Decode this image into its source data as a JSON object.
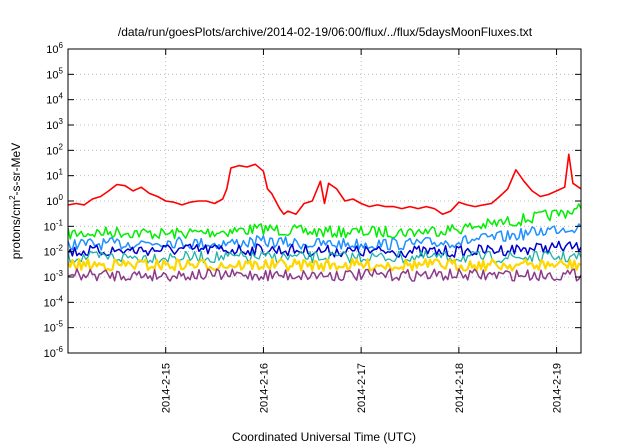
{
  "chart_data": {
    "type": "line",
    "title": "/data/run/goesPlots/archive/2014-02-19/06:00/flux/../flux/5daysMoonFluxes.txt",
    "xlabel": "Coordinated Universal Time (UTC)",
    "ylabel": {
      "prefix": "protons/cm",
      "sup": "2",
      "suffix": "-s-sr-MeV"
    },
    "yscale": "log",
    "ylim": [
      1e-06,
      1000000.0
    ],
    "y_ticks": [
      {
        "base": "10",
        "exp": "-6",
        "value": 1e-06
      },
      {
        "base": "10",
        "exp": "-5",
        "value": 1e-05
      },
      {
        "base": "10",
        "exp": "-4",
        "value": 0.0001
      },
      {
        "base": "10",
        "exp": "-3",
        "value": 0.001
      },
      {
        "base": "10",
        "exp": "-2",
        "value": 0.01
      },
      {
        "base": "10",
        "exp": "-1",
        "value": 0.1
      },
      {
        "base": "10",
        "exp": "0",
        "value": 1
      },
      {
        "base": "10",
        "exp": "1",
        "value": 10
      },
      {
        "base": "10",
        "exp": "2",
        "value": 100
      },
      {
        "base": "10",
        "exp": "3",
        "value": 1000
      },
      {
        "base": "10",
        "exp": "4",
        "value": 10000
      },
      {
        "base": "10",
        "exp": "5",
        "value": 100000
      },
      {
        "base": "10",
        "exp": "6",
        "value": 1000000
      }
    ],
    "xlim": [
      "2014-02-14T00:00",
      "2014-02-19T06:00"
    ],
    "x_ticks": [
      {
        "label": "2014-2-15",
        "value": "2014-02-15T00:00"
      },
      {
        "label": "2014-2-16",
        "value": "2014-02-16T00:00"
      },
      {
        "label": "2014-2-17",
        "value": "2014-02-17T00:00"
      },
      {
        "label": "2014-2-18",
        "value": "2014-02-18T00:00"
      },
      {
        "label": "2014-2-19",
        "value": "2014-02-19T00:00"
      }
    ],
    "grid": true,
    "series": [
      {
        "color": "#ff0000",
        "width": 1.6,
        "points": [
          [
            "2014-02-14T00:00",
            0.7
          ],
          [
            "2014-02-14T02:00",
            0.8
          ],
          [
            "2014-02-14T04:00",
            0.7
          ],
          [
            "2014-02-14T06:00",
            1.2
          ],
          [
            "2014-02-14T08:00",
            1.5
          ],
          [
            "2014-02-14T10:00",
            2.5
          ],
          [
            "2014-02-14T12:00",
            4.5
          ],
          [
            "2014-02-14T14:00",
            4.0
          ],
          [
            "2014-02-14T16:00",
            2.5
          ],
          [
            "2014-02-14T18:00",
            3.5
          ],
          [
            "2014-02-14T20:00",
            2.0
          ],
          [
            "2014-02-14T22:00",
            1.5
          ],
          [
            "2014-02-15T00:00",
            1.0
          ],
          [
            "2014-02-15T02:00",
            0.9
          ],
          [
            "2014-02-15T04:00",
            0.7
          ],
          [
            "2014-02-15T06:00",
            0.9
          ],
          [
            "2014-02-15T08:00",
            1.0
          ],
          [
            "2014-02-15T10:00",
            1.0
          ],
          [
            "2014-02-15T12:00",
            0.8
          ],
          [
            "2014-02-15T14:00",
            1.2
          ],
          [
            "2014-02-15T15:00",
            3.0
          ],
          [
            "2014-02-15T16:00",
            20.0
          ],
          [
            "2014-02-15T18:00",
            25.0
          ],
          [
            "2014-02-15T20:00",
            22.0
          ],
          [
            "2014-02-15T22:00",
            28.0
          ],
          [
            "2014-02-16T00:00",
            15.0
          ],
          [
            "2014-02-16T01:00",
            3.0
          ],
          [
            "2014-02-16T02:00",
            2.0
          ],
          [
            "2014-02-16T04:00",
            0.5
          ],
          [
            "2014-02-16T05:00",
            0.3
          ],
          [
            "2014-02-16T06:00",
            0.4
          ],
          [
            "2014-02-16T08:00",
            0.3
          ],
          [
            "2014-02-16T10:00",
            0.8
          ],
          [
            "2014-02-16T12:00",
            1.0
          ],
          [
            "2014-02-16T14:00",
            6.0
          ],
          [
            "2014-02-16T15:00",
            0.8
          ],
          [
            "2014-02-16T16:00",
            5.0
          ],
          [
            "2014-02-16T18:00",
            3.0
          ],
          [
            "2014-02-16T20:00",
            1.0
          ],
          [
            "2014-02-16T22:00",
            1.2
          ],
          [
            "2014-02-17T00:00",
            0.8
          ],
          [
            "2014-02-17T02:00",
            0.6
          ],
          [
            "2014-02-17T04:00",
            0.7
          ],
          [
            "2014-02-17T06:00",
            0.6
          ],
          [
            "2014-02-17T08:00",
            0.6
          ],
          [
            "2014-02-17T10:00",
            0.5
          ],
          [
            "2014-02-17T12:00",
            0.6
          ],
          [
            "2014-02-17T14:00",
            0.5
          ],
          [
            "2014-02-17T16:00",
            0.6
          ],
          [
            "2014-02-17T18:00",
            0.5
          ],
          [
            "2014-02-17T20:00",
            0.3
          ],
          [
            "2014-02-17T22:00",
            0.4
          ],
          [
            "2014-02-18T00:00",
            0.9
          ],
          [
            "2014-02-18T02:00",
            0.7
          ],
          [
            "2014-02-18T04:00",
            0.6
          ],
          [
            "2014-02-18T06:00",
            0.7
          ],
          [
            "2014-02-18T08:00",
            0.8
          ],
          [
            "2014-02-18T10:00",
            1.5
          ],
          [
            "2014-02-18T12:00",
            3.0
          ],
          [
            "2014-02-18T14:00",
            17.0
          ],
          [
            "2014-02-18T16:00",
            6.0
          ],
          [
            "2014-02-18T18:00",
            2.5
          ],
          [
            "2014-02-18T20:00",
            1.5
          ],
          [
            "2014-02-18T22:00",
            1.8
          ],
          [
            "2014-02-19T00:00",
            2.5
          ],
          [
            "2014-02-19T02:00",
            3.5
          ],
          [
            "2014-02-19T03:00",
            70.0
          ],
          [
            "2014-02-19T04:00",
            5.0
          ],
          [
            "2014-02-19T06:00",
            3.0
          ]
        ]
      },
      {
        "color": "#00ee00",
        "width": 1.5,
        "noisy": true,
        "points": [
          [
            "2014-02-14T00:00",
            0.05
          ],
          [
            "2014-02-14T12:00",
            0.06
          ],
          [
            "2014-02-15T00:00",
            0.05
          ],
          [
            "2014-02-15T12:00",
            0.06
          ],
          [
            "2014-02-16T00:00",
            0.08
          ],
          [
            "2014-02-16T12:00",
            0.06
          ],
          [
            "2014-02-17T00:00",
            0.06
          ],
          [
            "2014-02-17T12:00",
            0.06
          ],
          [
            "2014-02-18T00:00",
            0.08
          ],
          [
            "2014-02-18T12:00",
            0.15
          ],
          [
            "2014-02-19T00:00",
            0.3
          ],
          [
            "2014-02-19T06:00",
            0.5
          ]
        ]
      },
      {
        "color": "#1e90ff",
        "width": 1.5,
        "noisy": true,
        "points": [
          [
            "2014-02-14T00:00",
            0.02
          ],
          [
            "2014-02-14T12:00",
            0.02
          ],
          [
            "2014-02-15T00:00",
            0.025
          ],
          [
            "2014-02-15T12:00",
            0.02
          ],
          [
            "2014-02-16T00:00",
            0.025
          ],
          [
            "2014-02-16T12:00",
            0.02
          ],
          [
            "2014-02-17T00:00",
            0.02
          ],
          [
            "2014-02-17T12:00",
            0.02
          ],
          [
            "2014-02-18T00:00",
            0.025
          ],
          [
            "2014-02-18T12:00",
            0.04
          ],
          [
            "2014-02-19T00:00",
            0.08
          ],
          [
            "2014-02-19T06:00",
            0.1
          ]
        ]
      },
      {
        "color": "#0000cc",
        "width": 1.5,
        "noisy": true,
        "points": [
          [
            "2014-02-14T00:00",
            0.01
          ],
          [
            "2014-02-15T00:00",
            0.012
          ],
          [
            "2014-02-16T00:00",
            0.012
          ],
          [
            "2014-02-17T00:00",
            0.01
          ],
          [
            "2014-02-18T00:00",
            0.01
          ],
          [
            "2014-02-18T12:00",
            0.012
          ],
          [
            "2014-02-19T00:00",
            0.015
          ],
          [
            "2014-02-19T06:00",
            0.015
          ]
        ]
      },
      {
        "color": "#20b2aa",
        "width": 1.3,
        "noisy": true,
        "points": [
          [
            "2014-02-14T00:00",
            0.006
          ],
          [
            "2014-02-15T00:00",
            0.006
          ],
          [
            "2014-02-16T00:00",
            0.006
          ],
          [
            "2014-02-17T00:00",
            0.006
          ],
          [
            "2014-02-18T00:00",
            0.006
          ],
          [
            "2014-02-19T00:00",
            0.006
          ],
          [
            "2014-02-19T06:00",
            0.006
          ]
        ]
      },
      {
        "color": "#ffd700",
        "width": 2.2,
        "noisy": true,
        "points": [
          [
            "2014-02-14T00:00",
            0.003
          ],
          [
            "2014-02-15T00:00",
            0.003
          ],
          [
            "2014-02-16T00:00",
            0.003
          ],
          [
            "2014-02-17T00:00",
            0.003
          ],
          [
            "2014-02-18T00:00",
            0.003
          ],
          [
            "2014-02-19T00:00",
            0.003
          ],
          [
            "2014-02-19T06:00",
            0.003
          ]
        ]
      },
      {
        "color": "#8b3a8b",
        "width": 1.5,
        "noisy": true,
        "points": [
          [
            "2014-02-14T00:00",
            0.0012
          ],
          [
            "2014-02-15T00:00",
            0.0012
          ],
          [
            "2014-02-16T00:00",
            0.0012
          ],
          [
            "2014-02-17T00:00",
            0.0012
          ],
          [
            "2014-02-18T00:00",
            0.0012
          ],
          [
            "2014-02-19T00:00",
            0.0012
          ],
          [
            "2014-02-19T06:00",
            0.0012
          ]
        ]
      }
    ]
  }
}
